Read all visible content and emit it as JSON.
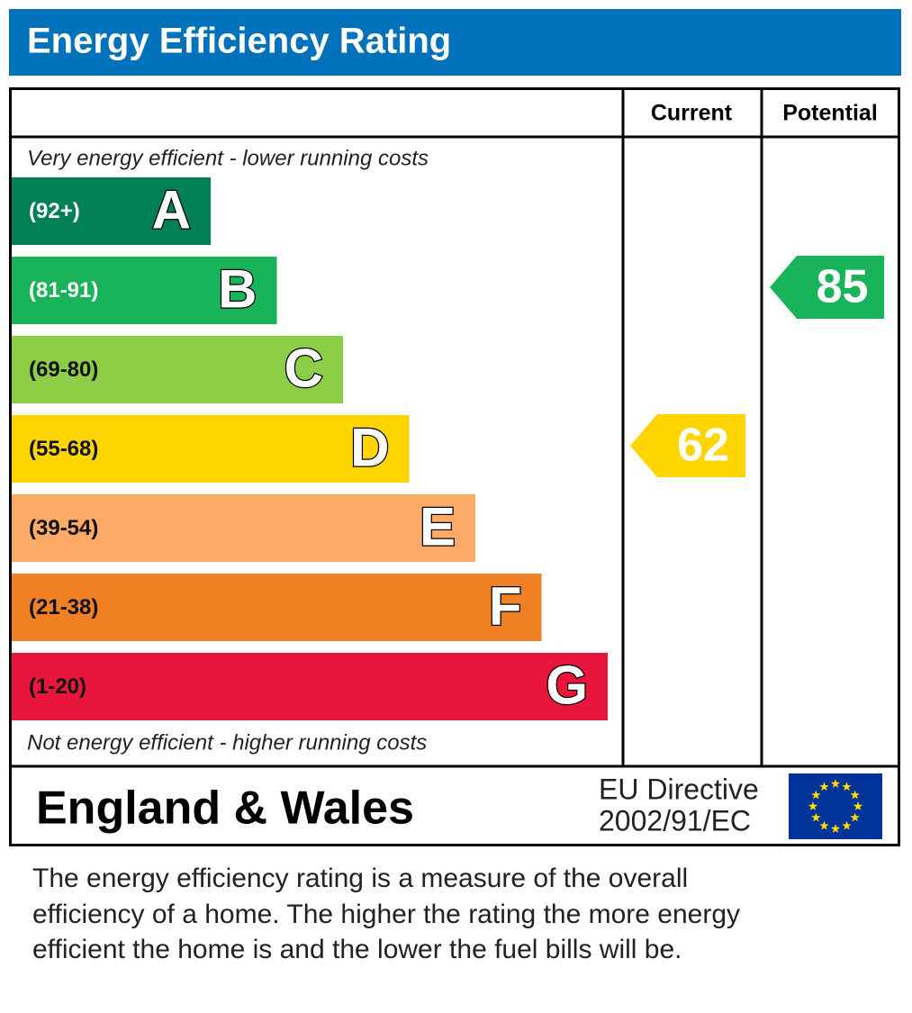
{
  "title": "Energy Efficiency Rating",
  "header": {
    "current": "Current",
    "potential": "Potential"
  },
  "top_note": "Very energy efficient - lower running costs",
  "bands": [
    {
      "range": "(92+)",
      "letter": "A",
      "color": "#008054"
    },
    {
      "range": "(81-91)",
      "letter": "B",
      "color": "#19b459"
    },
    {
      "range": "(69-80)",
      "letter": "C",
      "color": "#8dce46"
    },
    {
      "range": "(55-68)",
      "letter": "D",
      "color": "#ffd500"
    },
    {
      "range": "(39-54)",
      "letter": "E",
      "color": "#fcaa65"
    },
    {
      "range": "(21-38)",
      "letter": "F",
      "color": "#ef8023"
    },
    {
      "range": "(1-20)",
      "letter": "G",
      "color": "#e9153b"
    }
  ],
  "bottom_note": "Not energy efficient - higher running costs",
  "current": 62,
  "potential": 85,
  "footer": {
    "region": "England & Wales",
    "directive": [
      "EU Directive",
      "2002/91/EC"
    ]
  },
  "description": [
    "The energy efficiency rating is a measure of the overall",
    "efficiency of a home.  The higher the rating the more energy",
    "efficient the home is and the lower the fuel bills will be."
  ]
}
